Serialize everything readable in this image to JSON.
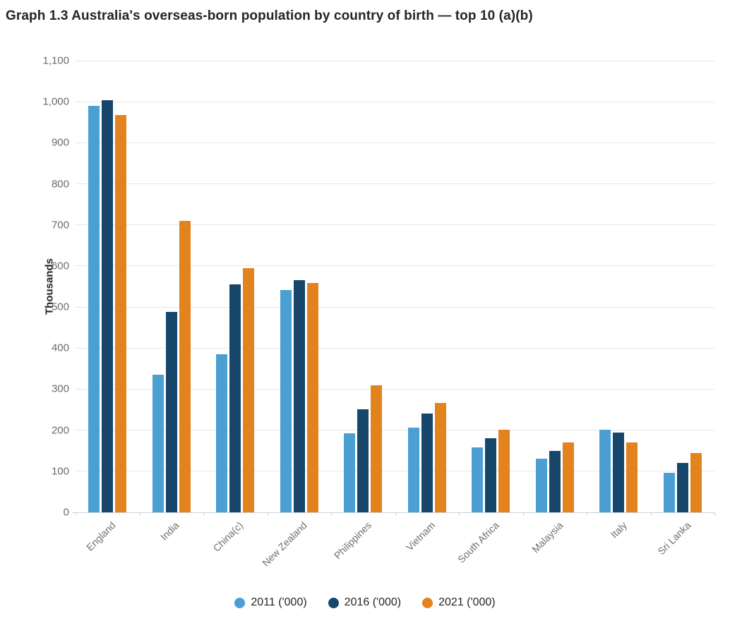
{
  "page": {
    "title": "Graph 1.3 Australia's overseas-born population by country of birth — top 10 (a)(b)"
  },
  "chart_data": {
    "type": "bar",
    "title": "Graph 1.3 Australia's overseas-born population by country of birth — top 10 (a)(b)",
    "xlabel": "",
    "ylabel": "Thousands",
    "ylim": [
      0,
      1100
    ],
    "ytick_step": 100,
    "ytick_labels": [
      "0",
      "100",
      "200",
      "300",
      "400",
      "500",
      "600",
      "700",
      "800",
      "900",
      "1,000",
      "1,100"
    ],
    "grid": true,
    "legend_position": "bottom-center",
    "categories": [
      "England",
      "India",
      "China(c)",
      "New Zealand",
      "Philippines",
      "Vietnam",
      "South Africa",
      "Malaysia",
      "Italy",
      "Sri Lanka"
    ],
    "series": [
      {
        "name": "2011 ('000)",
        "color": "#4AA0D2",
        "values": [
          990,
          336,
          385,
          542,
          193,
          207,
          158,
          131,
          201,
          96
        ]
      },
      {
        "name": "2016 ('000)",
        "color": "#17466B",
        "values": [
          1003,
          489,
          556,
          566,
          251,
          241,
          180,
          150,
          194,
          121
        ]
      },
      {
        "name": "2021 ('000)",
        "color": "#E2831E",
        "values": [
          967,
          710,
          595,
          558,
          309,
          266,
          201,
          171,
          170,
          144
        ]
      }
    ]
  },
  "colors": {
    "series_2011": "#4AA0D2",
    "series_2016": "#17466B",
    "series_2021": "#E2831E",
    "gridline": "#e6e6e6",
    "axis_line": "#d0d0d0",
    "title_text": "#252525",
    "tick_text": "#6b6b6b"
  }
}
